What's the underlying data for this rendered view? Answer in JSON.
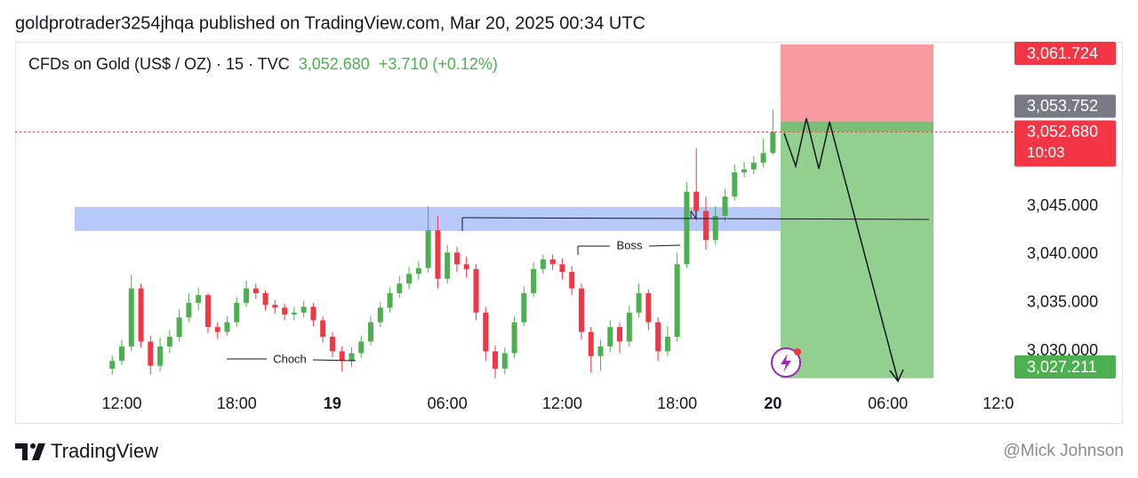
{
  "header": {
    "publisher": "goldprotrader3254jhqa published on TradingView.com, Mar 20, 2025 00:34 UTC"
  },
  "chart_data": {
    "type": "candlestick",
    "symbol": "CFDs on Gold (US$ / OZ) · 15 · TVC",
    "last_price": "3,052.680",
    "change": "+3.710 (+0.12%)",
    "countdown": "10:03",
    "up_color": "#4caf50",
    "down_color": "#f23645",
    "categories": [
      null,
      "12:00",
      null,
      null,
      null,
      null,
      null,
      null,
      null,
      null,
      null,
      null,
      null,
      "18:00",
      null,
      null,
      null,
      null,
      null,
      null,
      null,
      null,
      null,
      "19",
      null,
      null,
      null,
      null,
      null,
      null,
      null,
      null,
      null,
      null,
      null,
      "06:00",
      null,
      null,
      null,
      null,
      null,
      null,
      null,
      null,
      null,
      null,
      null,
      "12:00",
      null,
      null,
      null,
      null,
      null,
      null,
      null,
      null,
      null,
      null,
      null,
      "18:00",
      null,
      null,
      null,
      null,
      null,
      null,
      null,
      null,
      null,
      "20",
      null,
      null,
      null,
      null,
      null,
      null,
      null,
      null,
      null,
      null,
      null,
      "06:00",
      null,
      null,
      null,
      null,
      null,
      null,
      null,
      null,
      null,
      null,
      null,
      "12:00"
    ],
    "open": [
      3028.2,
      3029.0,
      3030.5,
      3036.5,
      3031.0,
      3028.5,
      3030.5,
      3031.5,
      3033.5,
      3035.0,
      3035.8,
      3032.5,
      3032.0,
      3033.0,
      3035.0,
      3036.5,
      3036.0,
      3034.8,
      3034.5,
      3033.8,
      3034.0,
      3034.6,
      3033.2,
      3031.5,
      3030.0,
      3029.0,
      3029.8,
      3031.0,
      3033.0,
      3034.5,
      3036.0,
      3037.0,
      3038.0,
      3038.6,
      3042.5,
      3037.5,
      3040.2,
      3039.0,
      3038.5,
      3034.0,
      3030.0,
      3028.2,
      3029.8,
      3033.0,
      3036.0,
      3038.5,
      3039.5,
      3039.0,
      3038.2,
      3036.5,
      3032.0,
      3029.5,
      3030.5,
      3032.5,
      3031.0,
      3034.0,
      3036.0,
      3033.0,
      3030.0,
      3031.5,
      3039.0,
      3046.5,
      3044.5,
      3041.5,
      3044.0,
      3046.0,
      3048.5,
      3048.8,
      3049.5,
      3050.5,
      null,
      null,
      null,
      null,
      null,
      null,
      null,
      null,
      null,
      null,
      null,
      null,
      null,
      null,
      null,
      null,
      null,
      null,
      null,
      null,
      null,
      null,
      null,
      null
    ],
    "high": [
      3029.6,
      3031.2,
      3037.9,
      3037.0,
      3031.6,
      3031.4,
      3032.2,
      3034.3,
      3036.0,
      3036.6,
      3036.0,
      3033.0,
      3033.6,
      3035.6,
      3037.3,
      3037.0,
      3036.3,
      3035.3,
      3034.9,
      3034.6,
      3035.2,
      3035.0,
      3033.6,
      3032.0,
      3030.5,
      3030.4,
      3031.6,
      3033.6,
      3035.1,
      3036.6,
      3037.8,
      3038.7,
      3039.3,
      3045.0,
      3044.0,
      3041.0,
      3040.8,
      3039.8,
      3039.0,
      3034.6,
      3030.6,
      3030.4,
      3033.6,
      3036.7,
      3039.2,
      3040.0,
      3040.0,
      3039.6,
      3038.8,
      3037.0,
      3032.5,
      3031.2,
      3033.2,
      3033.0,
      3034.7,
      3037.0,
      3036.4,
      3033.5,
      3032.6,
      3040.2,
      3047.5,
      3051.0,
      3046.0,
      3045.0,
      3046.8,
      3049.3,
      3049.6,
      3050.2,
      3052.0,
      3055.0,
      null,
      null,
      null,
      null,
      null,
      null,
      null,
      null,
      null,
      null,
      null,
      null,
      null,
      null,
      null,
      null,
      null,
      null,
      null,
      null,
      null,
      null,
      null,
      null
    ],
    "low": [
      3027.6,
      3028.6,
      3030.0,
      3030.4,
      3027.6,
      3027.9,
      3029.8,
      3031.0,
      3033.0,
      3034.2,
      3031.9,
      3031.3,
      3031.6,
      3032.5,
      3034.6,
      3035.4,
      3034.2,
      3033.9,
      3033.2,
      3033.2,
      3033.5,
      3032.6,
      3030.9,
      3029.4,
      3027.9,
      3028.4,
      3029.3,
      3030.6,
      3032.5,
      3034.0,
      3035.5,
      3036.4,
      3037.4,
      3038.1,
      3036.5,
      3037.0,
      3038.2,
      3037.6,
      3033.2,
      3029.0,
      3027.2,
      3027.6,
      3029.3,
      3032.6,
      3035.6,
      3038.0,
      3038.4,
      3037.4,
      3035.8,
      3031.2,
      3027.8,
      3028.0,
      3029.9,
      3029.8,
      3030.5,
      3033.5,
      3032.2,
      3029.0,
      3029.5,
      3031.0,
      3038.6,
      3043.5,
      3040.5,
      3041.0,
      3043.4,
      3045.6,
      3048.0,
      3048.3,
      3049.0,
      3050.3,
      null,
      null,
      null,
      null,
      null,
      null,
      null,
      null,
      null,
      null,
      null,
      null,
      null,
      null,
      null,
      null,
      null,
      null,
      null,
      null,
      null,
      null,
      null,
      null
    ],
    "close": [
      3029.0,
      3030.5,
      3036.5,
      3031.0,
      3028.5,
      3030.5,
      3031.5,
      3033.5,
      3035.0,
      3035.8,
      3032.5,
      3032.0,
      3033.0,
      3035.0,
      3036.5,
      3036.0,
      3034.8,
      3034.5,
      3033.8,
      3034.0,
      3034.6,
      3033.2,
      3031.5,
      3030.0,
      3029.0,
      3029.8,
      3031.0,
      3033.0,
      3034.5,
      3036.0,
      3037.0,
      3038.0,
      3038.6,
      3042.5,
      3037.5,
      3040.2,
      3039.0,
      3038.5,
      3034.0,
      3030.0,
      3028.2,
      3029.8,
      3033.0,
      3036.0,
      3038.5,
      3039.5,
      3039.0,
      3038.2,
      3036.5,
      3032.0,
      3029.5,
      3030.5,
      3032.5,
      3031.0,
      3034.0,
      3036.0,
      3033.0,
      3030.0,
      3031.5,
      3039.0,
      3046.5,
      3044.5,
      3041.5,
      3044.0,
      3046.0,
      3048.5,
      3048.8,
      3049.5,
      3050.5,
      3052.68,
      null,
      null,
      null,
      null,
      null,
      null,
      null,
      null,
      null,
      null,
      null,
      null,
      null,
      null,
      null,
      null,
      null,
      null,
      null,
      null,
      null,
      null,
      null,
      null
    ],
    "ylim": [
      3027,
      3062
    ],
    "yticks": [
      {
        "value": 3030,
        "label": "3,030.000"
      },
      {
        "value": 3035,
        "label": "3,035.000"
      },
      {
        "value": 3040,
        "label": "3,040.000"
      },
      {
        "value": 3045,
        "label": "3,045.000"
      }
    ],
    "position": {
      "stop": {
        "value": 3061.724,
        "label": "3,061.724",
        "color": "#f23645"
      },
      "entry": {
        "value": 3053.752,
        "label": "3,053.752",
        "color": "#787b86"
      },
      "target": {
        "value": 3027.211,
        "label": "3,027.211",
        "color": "#4caf50"
      }
    },
    "annotations": {
      "choch": "Choch",
      "boss": "Boss",
      "n": "N"
    }
  },
  "footer": {
    "brand": "TradingView",
    "watermark": "@Mick Johnson"
  }
}
